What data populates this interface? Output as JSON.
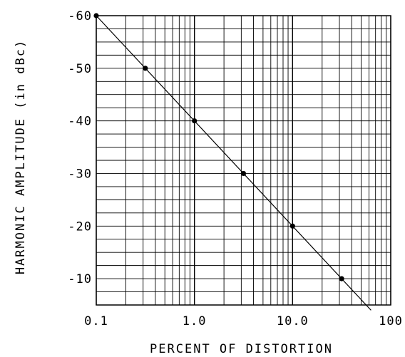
{
  "chart_data": {
    "type": "line",
    "title": "",
    "xlabel": "PERCENT OF DISTORTION",
    "ylabel": "HARMONIC AMPLITUDE (in dBc)",
    "x_scale": "log",
    "xlim": [
      0.1,
      100
    ],
    "ylim": [
      -5,
      -60
    ],
    "x_tick_labels": [
      "0.1",
      "1.0",
      "10.0",
      "100"
    ],
    "y_tick_labels": [
      "-60",
      "-50",
      "-40",
      "-30",
      "-20",
      "-10"
    ],
    "y_ticks": [
      -60,
      -50,
      -40,
      -30,
      -20,
      -10
    ],
    "grid": true,
    "series": [
      {
        "line_x": [
          0.1,
          63
        ],
        "line_y": [
          -60,
          -4
        ],
        "points": [
          {
            "x": 0.1,
            "y": -60
          },
          {
            "x": 0.316,
            "y": -50
          },
          {
            "x": 1.0,
            "y": -40
          },
          {
            "x": 3.16,
            "y": -30
          },
          {
            "x": 10.0,
            "y": -20
          },
          {
            "x": 31.6,
            "y": -10
          }
        ]
      }
    ]
  }
}
